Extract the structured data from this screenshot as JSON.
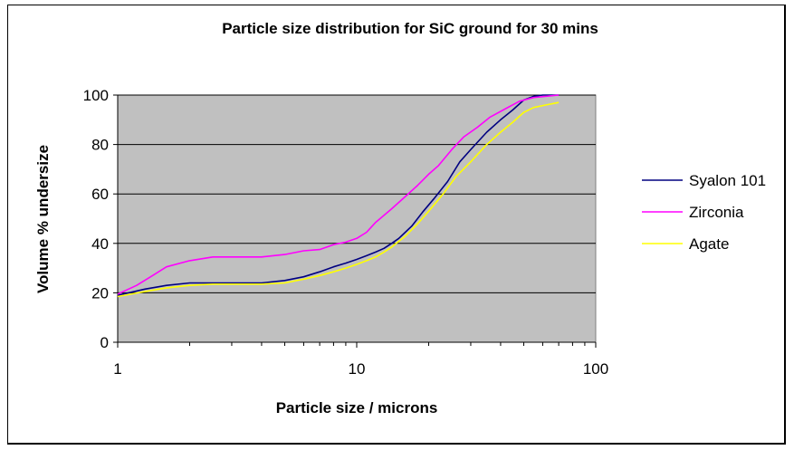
{
  "chart_data": {
    "type": "line",
    "title": "Particle size distribution for SiC ground for 30 mins",
    "xlabel": "Particle size / microns",
    "ylabel": "Volume % undersize",
    "xscale": "log",
    "xlim": [
      1,
      100
    ],
    "ylim": [
      0,
      100
    ],
    "x_ticks": [
      "1",
      "10",
      "100"
    ],
    "y_ticks": [
      "0",
      "20",
      "40",
      "60",
      "80",
      "100"
    ],
    "grid": "horizontal",
    "legend_position": "right",
    "plot_background": "#c0c0c0",
    "series": [
      {
        "name": "Syalon 101",
        "color": "#000080",
        "points": [
          [
            1.0,
            19
          ],
          [
            1.3,
            21.5
          ],
          [
            1.6,
            23
          ],
          [
            2.0,
            24
          ],
          [
            2.5,
            24
          ],
          [
            3.0,
            24
          ],
          [
            4.0,
            24
          ],
          [
            5.0,
            25
          ],
          [
            6.0,
            26.5
          ],
          [
            7.0,
            28.5
          ],
          [
            8.0,
            30.5
          ],
          [
            9.0,
            32
          ],
          [
            10.0,
            33.5
          ],
          [
            11.0,
            35
          ],
          [
            12.0,
            36.5
          ],
          [
            13.0,
            38
          ],
          [
            14.0,
            40
          ],
          [
            15.0,
            42
          ],
          [
            17.0,
            47
          ],
          [
            19.0,
            53
          ],
          [
            21.0,
            58
          ],
          [
            24.0,
            65
          ],
          [
            27.0,
            73
          ],
          [
            30.0,
            78
          ],
          [
            35.0,
            85
          ],
          [
            40.0,
            90
          ],
          [
            45.0,
            94
          ],
          [
            50.0,
            98
          ],
          [
            55.0,
            99.5
          ],
          [
            60.0,
            100
          ],
          [
            70.0,
            100
          ]
        ]
      },
      {
        "name": "Zirconia",
        "color": "#ff00ff",
        "points": [
          [
            1.0,
            19.5
          ],
          [
            1.2,
            23
          ],
          [
            1.4,
            27
          ],
          [
            1.6,
            30.5
          ],
          [
            2.0,
            33
          ],
          [
            2.5,
            34.5
          ],
          [
            3.0,
            34.5
          ],
          [
            4.0,
            34.5
          ],
          [
            5.0,
            35.5
          ],
          [
            6.0,
            37
          ],
          [
            7.0,
            37.5
          ],
          [
            8.0,
            39.5
          ],
          [
            9.0,
            40.5
          ],
          [
            10.0,
            42
          ],
          [
            11.0,
            44.5
          ],
          [
            12.0,
            48.5
          ],
          [
            14.0,
            54
          ],
          [
            16.0,
            59
          ],
          [
            18.0,
            63.5
          ],
          [
            20.0,
            68
          ],
          [
            22.0,
            71.5
          ],
          [
            25.0,
            78
          ],
          [
            28.0,
            83
          ],
          [
            32.0,
            87
          ],
          [
            36.0,
            91
          ],
          [
            42.0,
            94.5
          ],
          [
            48.0,
            97.5
          ],
          [
            55.0,
            99
          ],
          [
            70.0,
            100
          ]
        ]
      },
      {
        "name": "Agate",
        "color": "#ffff00",
        "points": [
          [
            1.0,
            18.5
          ],
          [
            1.3,
            20.5
          ],
          [
            1.6,
            22
          ],
          [
            2.0,
            23
          ],
          [
            2.5,
            23.5
          ],
          [
            3.0,
            23.5
          ],
          [
            4.0,
            23.5
          ],
          [
            5.0,
            24
          ],
          [
            6.0,
            25.5
          ],
          [
            7.0,
            27
          ],
          [
            8.0,
            28.5
          ],
          [
            9.0,
            30
          ],
          [
            10.0,
            31.5
          ],
          [
            11.0,
            33
          ],
          [
            12.0,
            34.5
          ],
          [
            13.0,
            36.5
          ],
          [
            14.0,
            38.5
          ],
          [
            16.0,
            43
          ],
          [
            18.0,
            48
          ],
          [
            20.0,
            53
          ],
          [
            23.0,
            60
          ],
          [
            26.0,
            67
          ],
          [
            30.0,
            73
          ],
          [
            35.0,
            80
          ],
          [
            40.0,
            85
          ],
          [
            45.0,
            89
          ],
          [
            50.0,
            93
          ],
          [
            55.0,
            95
          ],
          [
            62.0,
            96
          ],
          [
            70.0,
            97
          ]
        ]
      }
    ]
  }
}
